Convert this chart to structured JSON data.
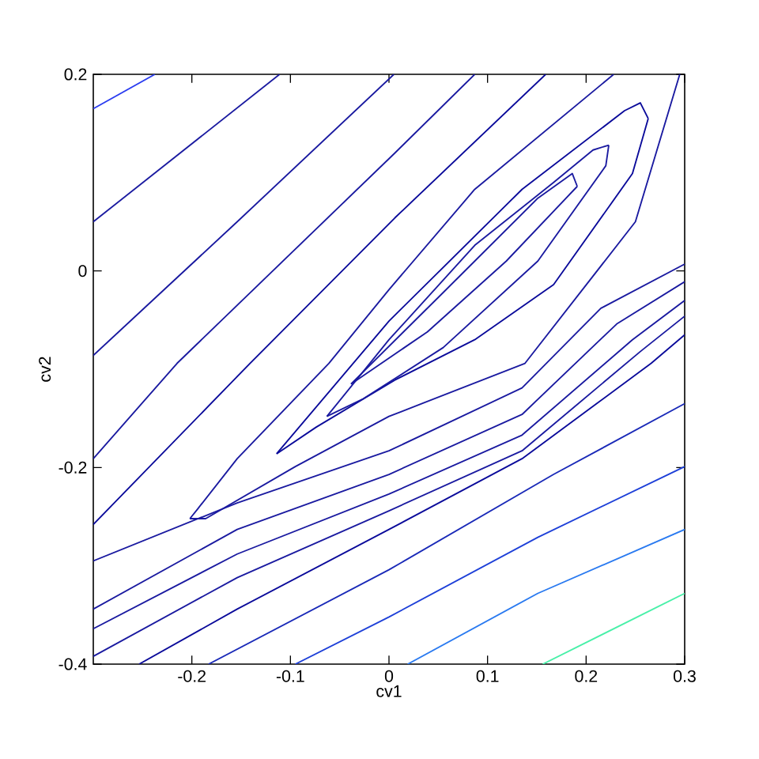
{
  "chart_data": {
    "type": "line",
    "xlabel": "cv1",
    "ylabel": "cv2",
    "xlim": [
      -0.3,
      0.3
    ],
    "ylim": [
      -0.4,
      0.2
    ],
    "xticks": [
      -0.2,
      -0.1,
      0,
      0.1,
      0.2,
      0.3
    ],
    "yticks": [
      -0.4,
      -0.2,
      0,
      0.2
    ],
    "grid": false,
    "marker": "none",
    "line_style": "solid",
    "series": [
      {
        "color": "#2a3cf0",
        "x": [
          -0.3,
          -0.2375
        ],
        "values": [
          0.165,
          0.2
        ]
      },
      {
        "color": "#1a1aa0",
        "x": [
          -0.3,
          -0.111
        ],
        "values": [
          0.05,
          0.2
        ]
      },
      {
        "color": "#1a1aa0",
        "x": [
          -0.3,
          -0.154,
          0.005
        ],
        "values": [
          -0.086,
          0.05,
          0.2
        ]
      },
      {
        "color": "#1a1aa0",
        "x": [
          -0.3,
          -0.215,
          0.006,
          0.087
        ],
        "values": [
          -0.191,
          -0.094,
          0.12,
          0.2
        ]
      },
      {
        "color": "#0a0a9a",
        "x": [
          -0.3,
          -0.141,
          0.006,
          0.159
        ],
        "values": [
          -0.258,
          -0.094,
          0.054,
          0.2
        ]
      },
      {
        "color": "#1a1aa0",
        "x": [
          -0.202,
          -0.194,
          -0.154,
          -0.061,
          0,
          0.087,
          0.228
        ],
        "values": [
          -0.252,
          -0.242,
          -0.191,
          -0.094,
          -0.019,
          0.083,
          0.2
        ]
      },
      {
        "color": "#1a1aa0",
        "x": [
          -0.202,
          -0.186,
          -0.095,
          0,
          0.138,
          0.25,
          0.295
        ],
        "values": [
          -0.252,
          -0.252,
          -0.199,
          -0.148,
          -0.094,
          0.05,
          0.2
        ]
      },
      {
        "color": "#0a0a9a",
        "x": [
          -0.114,
          0,
          0.135,
          0.239,
          0.255,
          0.263
        ],
        "values": [
          -0.186,
          -0.051,
          0.083,
          0.163,
          0.171,
          0.155
        ]
      },
      {
        "color": "#0a0a9a",
        "x": [
          -0.114,
          -0.074,
          0.006,
          0.087,
          0.167,
          0.247,
          0.263
        ],
        "values": [
          -0.186,
          -0.159,
          -0.111,
          -0.07,
          -0.014,
          0.099,
          0.155
        ]
      },
      {
        "color": "#1a1aa0",
        "x": [
          -0.063,
          0,
          0.087,
          0.167,
          0.207,
          0.223
        ],
        "values": [
          -0.148,
          -0.07,
          0.026,
          0.09,
          0.123,
          0.128
        ]
      },
      {
        "color": "#1a1aa0",
        "x": [
          -0.063,
          -0.026,
          0.055,
          0.151,
          0.22,
          0.223
        ],
        "values": [
          -0.148,
          -0.13,
          -0.078,
          0.01,
          0.107,
          0.128
        ]
      },
      {
        "color": "#1a1aa0",
        "x": [
          -0.0385,
          0.055,
          0.151,
          0.186,
          0.191
        ],
        "values": [
          -0.115,
          -0.022,
          0.074,
          0.099,
          0.086
        ]
      },
      {
        "color": "#1a1aa0",
        "x": [
          -0.0385,
          0.039,
          0.119,
          0.191
        ],
        "values": [
          -0.115,
          -0.062,
          0.01,
          0.086
        ]
      },
      {
        "color": "#1a1aa0",
        "x": [
          -0.3,
          -0.154,
          0,
          0.135,
          0.215,
          0.3
        ],
        "values": [
          -0.295,
          -0.236,
          -0.183,
          -0.119,
          -0.038,
          0.007
        ]
      },
      {
        "color": "#1a1aa0",
        "x": [
          -0.3,
          -0.154,
          0,
          0.135,
          0.231,
          0.3
        ],
        "values": [
          -0.344,
          -0.263,
          -0.207,
          -0.146,
          -0.054,
          -0.011
        ]
      },
      {
        "color": "#1a1aa0",
        "x": [
          -0.3,
          -0.154,
          0,
          0.135,
          0.247,
          0.3
        ],
        "values": [
          -0.364,
          -0.288,
          -0.227,
          -0.167,
          -0.07,
          -0.03
        ]
      },
      {
        "color": "#1a1aa0",
        "x": [
          -0.3,
          -0.154,
          0,
          0.135,
          0.255,
          0.3
        ],
        "values": [
          -0.392,
          -0.312,
          -0.244,
          -0.183,
          -0.082,
          -0.046
        ]
      },
      {
        "color": "#0a0a9a",
        "x": [
          -0.2535,
          -0.154,
          0,
          0.135,
          0.266,
          0.3
        ],
        "values": [
          -0.4,
          -0.344,
          -0.263,
          -0.191,
          -0.094,
          -0.065
        ]
      },
      {
        "color": "#1a2ab8",
        "x": [
          -0.183,
          0,
          0.167,
          0.3
        ],
        "values": [
          -0.4,
          -0.304,
          -0.207,
          -0.135
        ]
      },
      {
        "color": "#1e40d8",
        "x": [
          -0.095,
          0,
          0.151,
          0.3
        ],
        "values": [
          -0.4,
          -0.352,
          -0.271,
          -0.199
        ]
      },
      {
        "color": "#2a7af0",
        "x": [
          0.019,
          0.151,
          0.3
        ],
        "values": [
          -0.4,
          -0.328,
          -0.263
        ]
      },
      {
        "color": "#48f0a8",
        "x": [
          0.156,
          0.3
        ],
        "values": [
          -0.4,
          -0.328
        ]
      }
    ]
  }
}
